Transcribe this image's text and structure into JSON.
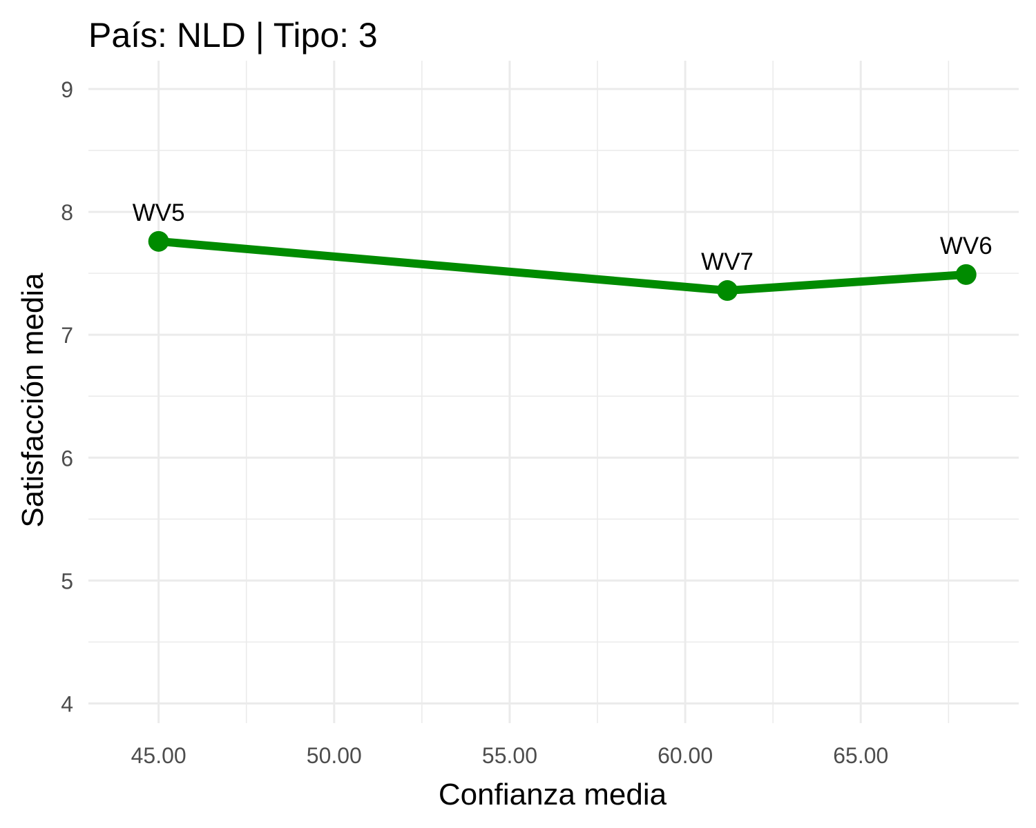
{
  "chart_data": {
    "type": "line",
    "title": "País: NLD | Tipo: 3",
    "xlabel": "Confianza media",
    "ylabel": "Satisfacción media",
    "xlim": [
      43.0,
      69.5
    ],
    "ylim": [
      3.84,
      9.23
    ],
    "x_ticks": [
      45,
      50,
      55,
      60,
      65
    ],
    "x_tick_labels": [
      "45.00",
      "50.00",
      "55.00",
      "60.00",
      "65.00"
    ],
    "y_ticks": [
      4,
      5,
      6,
      7,
      8,
      9
    ],
    "y_tick_labels": [
      "4",
      "5",
      "6",
      "7",
      "8",
      "9"
    ],
    "grid": true,
    "series": [
      {
        "color": "#008b00",
        "points": [
          {
            "label": "WV5",
            "x": 45.0,
            "y": 7.76
          },
          {
            "label": "WV7",
            "x": 61.2,
            "y": 7.36
          },
          {
            "label": "WV6",
            "x": 68.0,
            "y": 7.49
          }
        ]
      }
    ]
  }
}
